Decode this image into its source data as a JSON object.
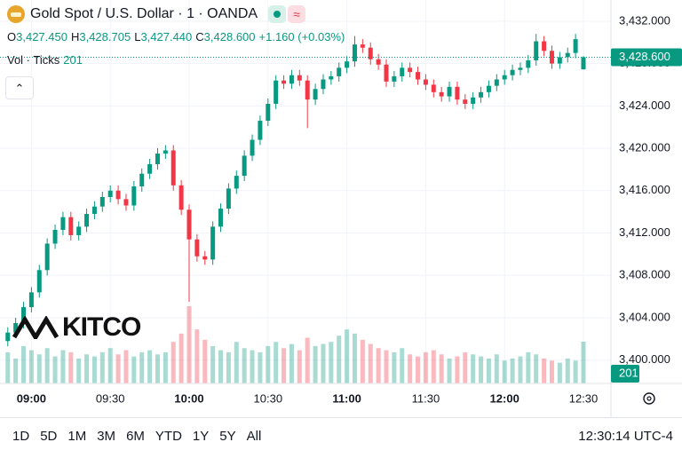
{
  "chart_data": {
    "type": "candlestick",
    "title": "Gold Spot / U.S. Dollar · 1 · OANDA",
    "ohlc_header": [
      {
        "key": "O",
        "text": "3,427.450"
      },
      {
        "key": "H",
        "text": "3,428.705"
      },
      {
        "key": "L",
        "text": "3,427.440"
      },
      {
        "key": "C",
        "text": "3,428.600"
      }
    ],
    "change": "+1.160 (+0.03%)",
    "volume_title": "Vol · Ticks",
    "watermark": "KITCO",
    "last_price_label": "3,428.600",
    "ranges": [
      "1D",
      "5D",
      "1M",
      "3M",
      "6M",
      "YTD",
      "1Y",
      "5Y",
      "All"
    ],
    "clock": "12:30:14 UTC-4",
    "up_color": "#089981",
    "down_color": "#f23645",
    "grid": true,
    "categories": [
      null,
      null,
      null,
      "09:00",
      null,
      null,
      null,
      null,
      null,
      null,
      null,
      null,
      null,
      "09:30",
      null,
      null,
      null,
      null,
      null,
      null,
      null,
      null,
      null,
      "10:00",
      null,
      null,
      null,
      null,
      null,
      null,
      null,
      null,
      null,
      "10:30",
      null,
      null,
      null,
      null,
      null,
      null,
      null,
      null,
      null,
      "11:00",
      null,
      null,
      null,
      null,
      null,
      null,
      null,
      null,
      null,
      "11:30",
      null,
      null,
      null,
      null,
      null,
      null,
      null,
      null,
      null,
      "12:00",
      null,
      null,
      null,
      null,
      null,
      null,
      null,
      null,
      null,
      "12:30"
    ],
    "open": [
      3401.8,
      3402.6,
      3403.5,
      3405,
      3406.4,
      3408.5,
      3411,
      3412.3,
      3413.5,
      3411.8,
      3412.6,
      3413.8,
      3414.5,
      3415.4,
      3416,
      3415.2,
      3414.6,
      3416.4,
      3417.6,
      3418.5,
      3419.5,
      3419.8,
      3416.5,
      3414.2,
      3411.4,
      3409.8,
      3409.5,
      3412.6,
      3414.3,
      3416.2,
      3417.4,
      3419.3,
      3420.8,
      3422.6,
      3424.2,
      3426.4,
      3426.1,
      3426.9,
      3426.4,
      3424.6,
      3425.6,
      3426.5,
      3426.8,
      3427.6,
      3428.2,
      3429.8,
      3429.5,
      3428.4,
      3427.9,
      3426.3,
      3426.8,
      3427.6,
      3427.2,
      3426.5,
      3426,
      3425.3,
      3424.9,
      3425.8,
      3424.6,
      3424.2,
      3424.8,
      3425.3,
      3425.9,
      3426.5,
      3426.9,
      3427.4,
      3427.6,
      3428.3,
      3430.1,
      3429.2,
      3428,
      3428.6,
      3429,
      3427.45
    ],
    "high": [
      3403.1,
      3404.0,
      3405.5,
      3406.9,
      3409.0,
      3411.5,
      3412.8,
      3414.0,
      3414.0,
      3413.1,
      3414.3,
      3415.0,
      3415.9,
      3416.5,
      3416.5,
      3415.7,
      3416.9,
      3418.1,
      3419.0,
      3420.0,
      3420.3,
      3420.3,
      3417.0,
      3414.7,
      3411.9,
      3410.3,
      3413.1,
      3414.8,
      3416.7,
      3417.9,
      3419.8,
      3421.3,
      3423.1,
      3424.7,
      3426.9,
      3426.9,
      3427.4,
      3427.4,
      3426.9,
      3426.1,
      3427.0,
      3427.3,
      3428.1,
      3428.7,
      3430.6,
      3430.3,
      3430.0,
      3428.9,
      3428.4,
      3427.3,
      3428.1,
      3428.1,
      3427.7,
      3427.0,
      3426.5,
      3425.8,
      3426.3,
      3426.3,
      3425.1,
      3425.3,
      3425.8,
      3426.4,
      3427.0,
      3427.4,
      3427.9,
      3428.1,
      3428.8,
      3430.8,
      3430.6,
      3429.7,
      3429.1,
      3429.5,
      3430.8,
      3428.705
    ],
    "low": [
      3401.3,
      3402.1,
      3403.0,
      3404.5,
      3405.9,
      3408.0,
      3410.5,
      3411.8,
      3411.3,
      3411.3,
      3412.1,
      3413.3,
      3414.0,
      3414.9,
      3414.7,
      3414.1,
      3414.1,
      3415.9,
      3417.1,
      3418.0,
      3419.0,
      3416.0,
      3413.7,
      3405.5,
      3409.3,
      3409.0,
      3409.0,
      3412.1,
      3413.8,
      3415.7,
      3416.9,
      3418.8,
      3420.3,
      3422.1,
      3423.7,
      3425.6,
      3425.6,
      3425.9,
      3421.9,
      3424.1,
      3425.1,
      3426.0,
      3426.3,
      3427.1,
      3427.7,
      3429.0,
      3427.9,
      3427.4,
      3425.8,
      3425.8,
      3426.3,
      3426.7,
      3426.0,
      3425.5,
      3424.8,
      3424.4,
      3424.4,
      3424.1,
      3423.7,
      3423.7,
      3424.3,
      3424.8,
      3425.4,
      3426.0,
      3426.4,
      3426.9,
      3427.1,
      3427.8,
      3428.7,
      3427.5,
      3427.5,
      3428.1,
      3428.5,
      3427.44
    ],
    "close": [
      3402.6,
      3403.5,
      3405,
      3406.4,
      3408.5,
      3411,
      3412.3,
      3413.5,
      3411.8,
      3412.6,
      3413.8,
      3414.5,
      3415.4,
      3416,
      3415.2,
      3414.6,
      3416.4,
      3417.6,
      3418.5,
      3419.5,
      3419.8,
      3416.5,
      3414.2,
      3411.4,
      3409.8,
      3409.5,
      3412.6,
      3414.3,
      3416.2,
      3417.4,
      3419.3,
      3420.8,
      3422.6,
      3424.2,
      3426.4,
      3426.1,
      3426.9,
      3426.4,
      3424.6,
      3425.6,
      3426.5,
      3426.8,
      3427.6,
      3428.2,
      3429.8,
      3429.5,
      3428.4,
      3427.9,
      3426.3,
      3426.8,
      3427.6,
      3427.2,
      3426.5,
      3426,
      3425.3,
      3424.9,
      3425.8,
      3424.6,
      3424.2,
      3424.8,
      3425.3,
      3425.9,
      3426.5,
      3426.9,
      3427.4,
      3427.6,
      3428.3,
      3430.1,
      3429.2,
      3428,
      3428.6,
      3429,
      3430.3,
      3428.6
    ],
    "volumes": [
      150,
      120,
      180,
      160,
      140,
      170,
      130,
      160,
      150,
      120,
      140,
      130,
      150,
      170,
      140,
      160,
      130,
      150,
      160,
      140,
      150,
      200,
      240,
      372,
      260,
      210,
      180,
      160,
      150,
      200,
      170,
      160,
      150,
      180,
      200,
      170,
      190,
      160,
      220,
      180,
      190,
      200,
      230,
      260,
      240,
      210,
      190,
      170,
      160,
      150,
      170,
      140,
      130,
      150,
      160,
      140,
      120,
      130,
      150,
      140,
      130,
      120,
      140,
      110,
      120,
      130,
      150,
      140,
      120,
      110,
      100,
      120,
      110,
      201
    ],
    "volume_ylim": [
      0,
      500
    ],
    "ylim": [
      3397.8,
      3434.0
    ],
    "yticks": [
      {
        "value": 3400,
        "label": "3,400.000"
      },
      {
        "value": 3404,
        "label": "3,404.000"
      },
      {
        "value": 3408,
        "label": "3,408.000"
      },
      {
        "value": 3412,
        "label": "3,412.000"
      },
      {
        "value": 3416,
        "label": "3,416.000"
      },
      {
        "value": 3420,
        "label": "3,420.000"
      },
      {
        "value": 3424,
        "label": "3,424.000"
      },
      {
        "value": 3428,
        "label": "3,428.000"
      },
      {
        "value": 3432,
        "label": "3,432.000"
      }
    ]
  }
}
